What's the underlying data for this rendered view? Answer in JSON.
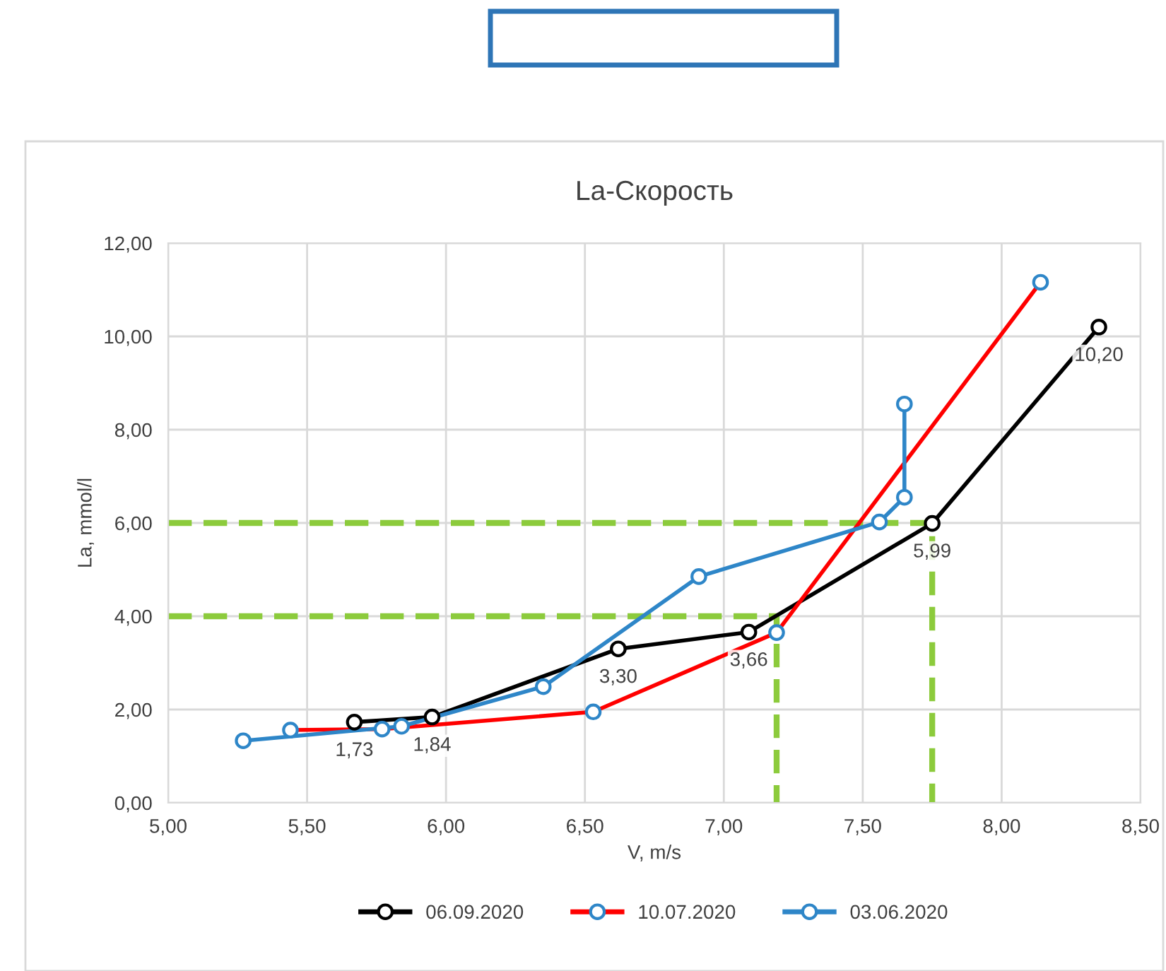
{
  "chart_data": {
    "type": "line",
    "title": "La-Скорость",
    "xlabel": "V, m/s",
    "ylabel": "La, mmol/l",
    "xlim": [
      5.0,
      8.5
    ],
    "xticks": [
      {
        "value": 5.0,
        "label": "5,00"
      },
      {
        "value": 5.5,
        "label": "5,50"
      },
      {
        "value": 6.0,
        "label": "6,00"
      },
      {
        "value": 6.5,
        "label": "6,50"
      },
      {
        "value": 7.0,
        "label": "7,00"
      },
      {
        "value": 7.5,
        "label": "7,50"
      },
      {
        "value": 8.0,
        "label": "8,00"
      },
      {
        "value": 8.5,
        "label": "8,50"
      }
    ],
    "ylim": [
      0,
      12
    ],
    "yticks": [
      {
        "value": 0,
        "label": "0,00"
      },
      {
        "value": 2,
        "label": "2,00"
      },
      {
        "value": 4,
        "label": "4,00"
      },
      {
        "value": 6,
        "label": "6,00"
      },
      {
        "value": 8,
        "label": "8,00"
      },
      {
        "value": 10,
        "label": "10,00"
      },
      {
        "value": 12,
        "label": "12,00"
      }
    ],
    "grid": true,
    "legend": "bottom",
    "marker": "circle",
    "line_style": "solid",
    "series": [
      {
        "name": "06.09.2020",
        "color": "#000000",
        "x": [
          5.67,
          5.95,
          6.62,
          7.09,
          7.75,
          8.35
        ],
        "values": [
          1.73,
          1.84,
          3.3,
          3.66,
          5.99,
          10.2
        ],
        "value_labels": [
          "1,73",
          "1,84",
          "3,30",
          "3,66",
          "5,99",
          "10,20"
        ]
      },
      {
        "name": "10.07.2020",
        "color": "#ff0000",
        "colors": [
          "#2e86c8",
          "#2e86c8",
          "#2e86c8",
          "#2e86c8",
          "#2e86c8"
        ],
        "x": [
          5.44,
          5.77,
          6.53,
          7.19,
          8.14
        ],
        "values": [
          1.56,
          1.58,
          1.95,
          3.65,
          11.16
        ]
      },
      {
        "name": "03.06.2020",
        "color": "#2e86c8",
        "x": [
          5.27,
          5.84,
          6.35,
          6.91,
          7.56,
          7.65,
          7.65
        ],
        "values": [
          1.33,
          1.64,
          2.49,
          4.85,
          6.02,
          6.55,
          8.55
        ]
      },
      {
        "color": "#8ccb3c",
        "marker": "none",
        "line_style": "dashed",
        "x": [
          5.0,
          7.19,
          7.19
        ],
        "values": [
          4,
          4,
          0
        ]
      },
      {
        "color": "#8ccb3c",
        "marker": "none",
        "line_style": "dashed",
        "x": [
          5.0,
          7.75,
          7.75
        ],
        "values": [
          6,
          6,
          0
        ]
      }
    ]
  }
}
